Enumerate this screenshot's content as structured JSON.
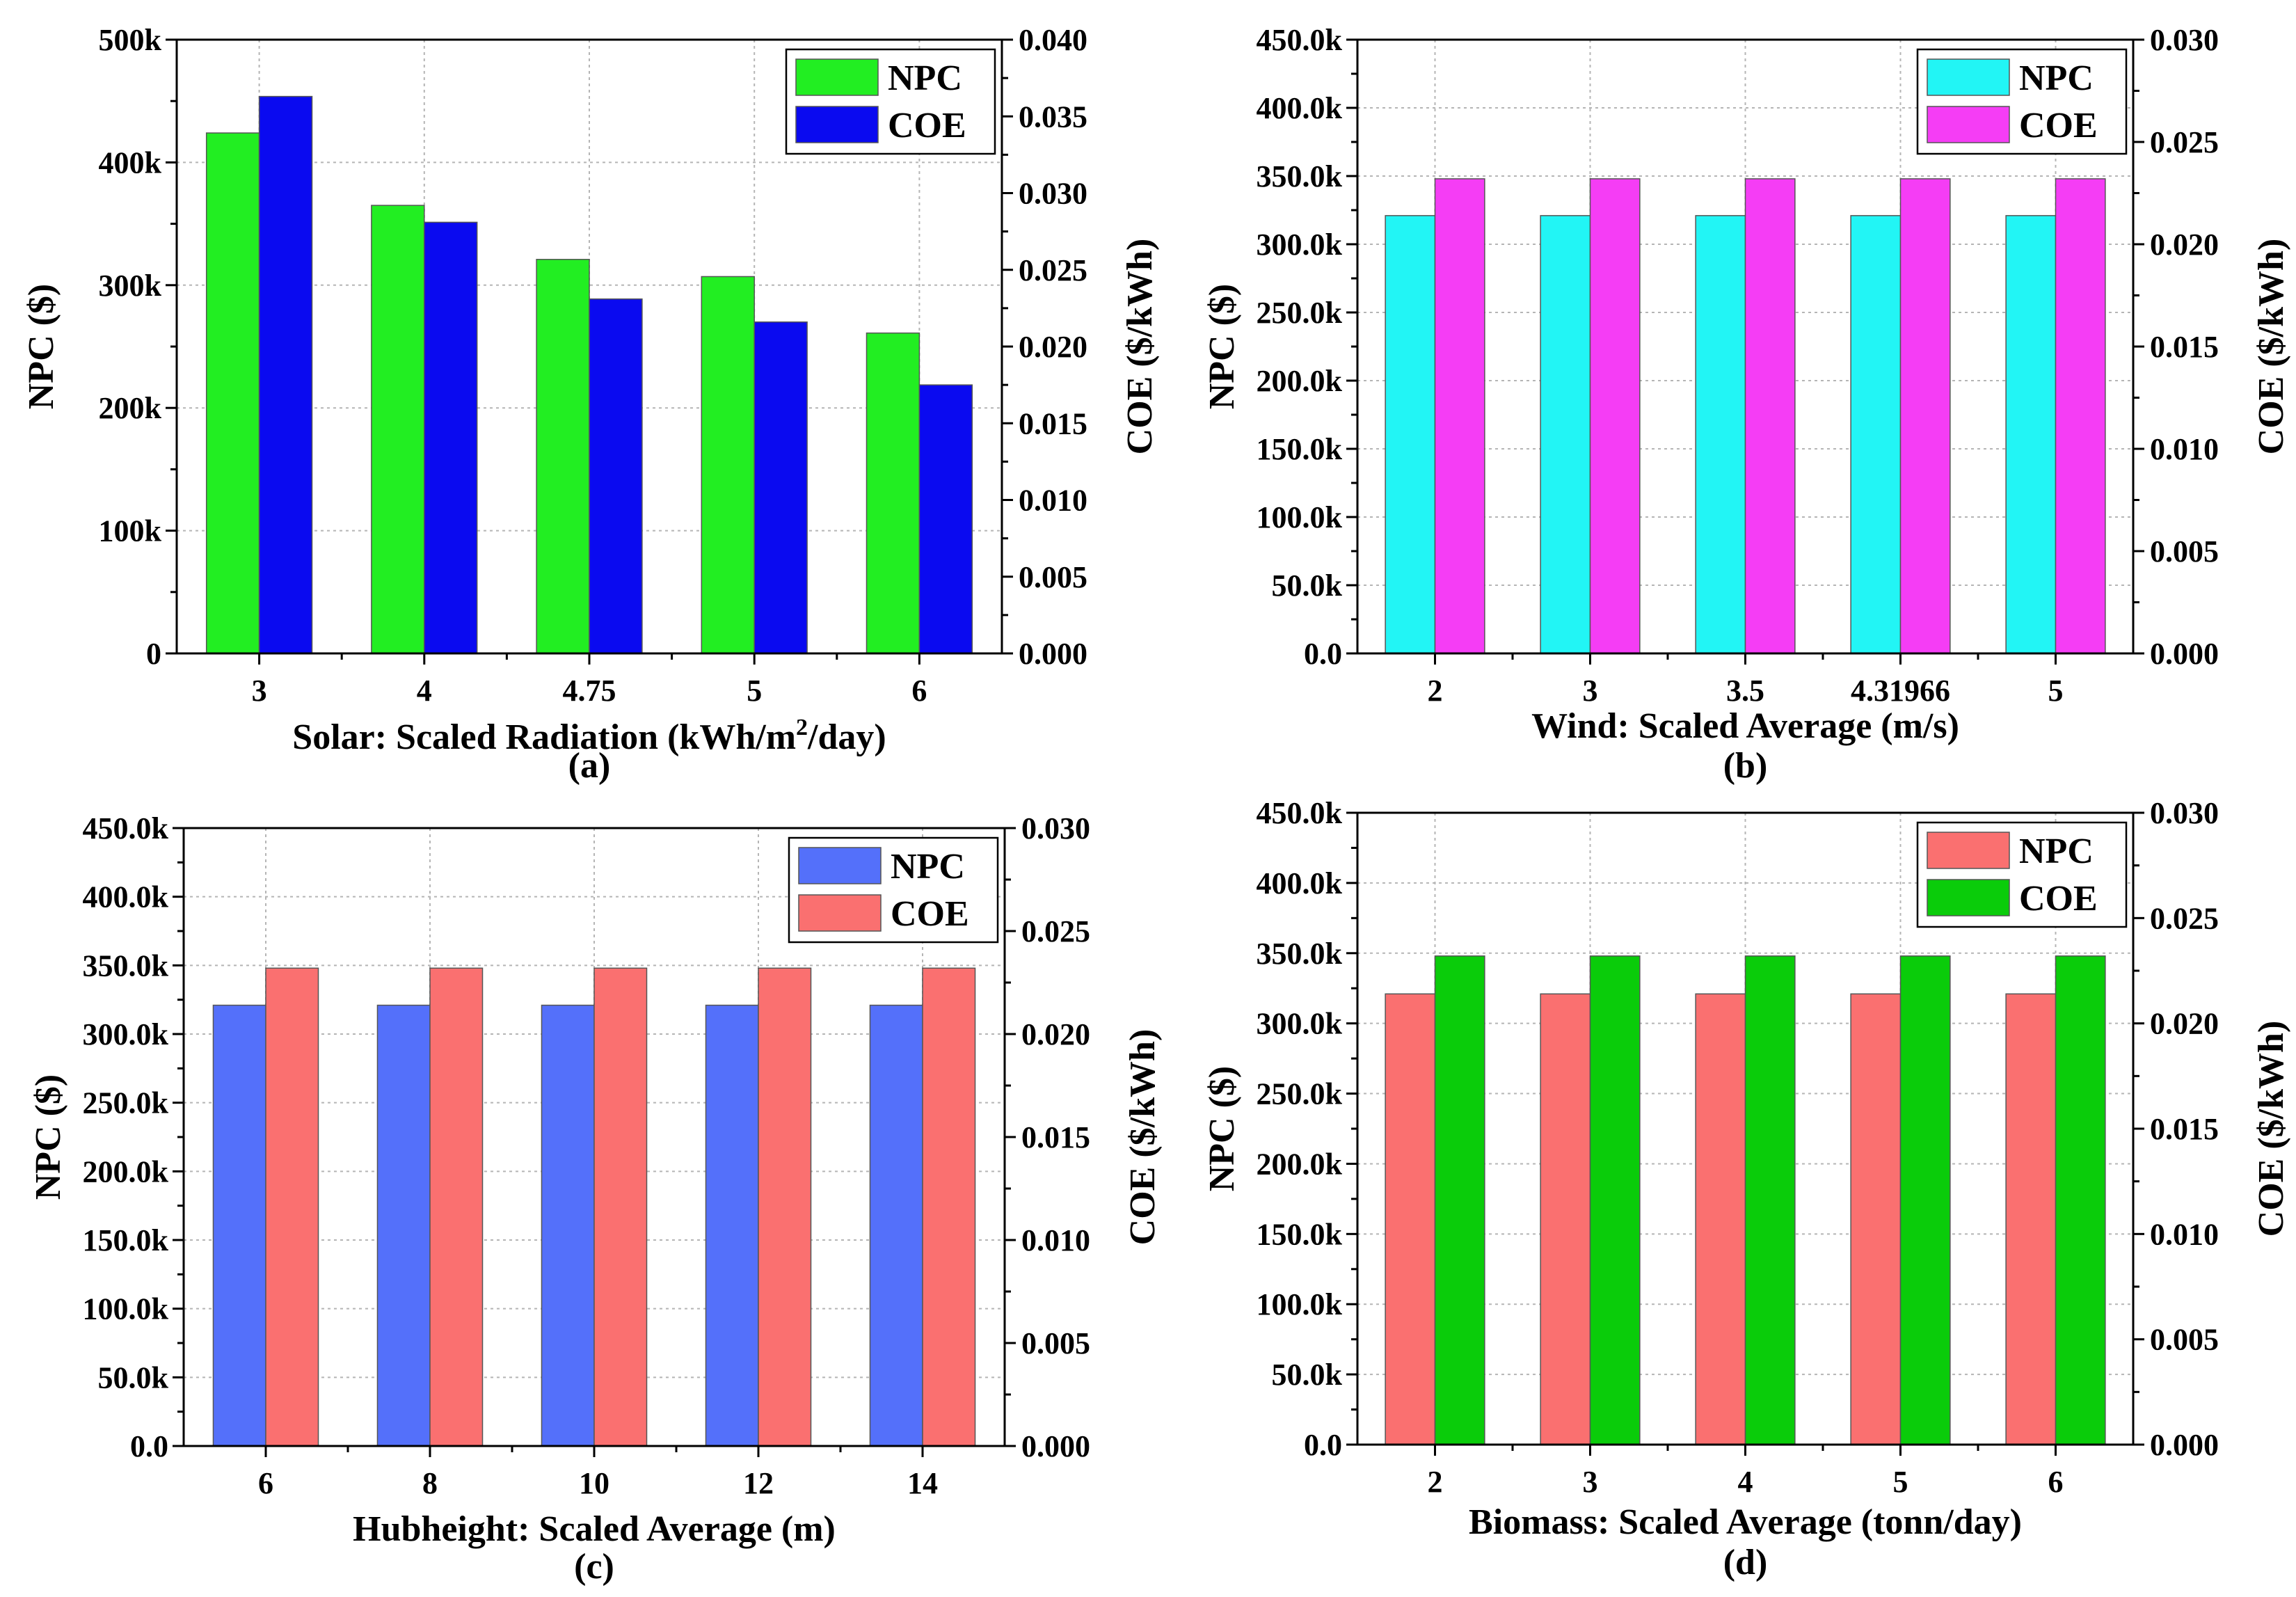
{
  "figure": {
    "panel_count": 4
  },
  "chart_data": [
    {
      "id": "a",
      "type": "bar",
      "caption": "(a)",
      "xlabel_main": "Solar: Scaled Radiation (kWh/m",
      "xlabel_sup": "2",
      "xlabel_end": "/day)",
      "categories": [
        "3",
        "4",
        "4.75",
        "5",
        "6"
      ],
      "ylabel_left": "NPC ($)",
      "ylabel_right": "COE ($/kWh)",
      "left_axis": {
        "min": 0,
        "max": 500000,
        "ticks": [
          0,
          100000,
          200000,
          300000,
          400000,
          500000
        ],
        "labels": [
          "0",
          "100k",
          "200k",
          "300k",
          "400k",
          "500k"
        ]
      },
      "right_axis": {
        "min": 0,
        "max": 0.04,
        "ticks": [
          0,
          0.005,
          0.01,
          0.015,
          0.02,
          0.025,
          0.03,
          0.035,
          0.04
        ],
        "labels": [
          "0.000",
          "0.005",
          "0.010",
          "0.015",
          "0.020",
          "0.025",
          "0.030",
          "0.035",
          "0.040"
        ]
      },
      "grid": true,
      "legend_position": "top-right",
      "series": [
        {
          "name": "NPC",
          "axis": "left",
          "color": "#22EE22",
          "values": [
            424000,
            365000,
            321000,
            307000,
            261000
          ]
        },
        {
          "name": "COE",
          "axis": "right",
          "color": "#0A0AF0",
          "values": [
            0.0363,
            0.0281,
            0.0231,
            0.0216,
            0.0175
          ]
        }
      ]
    },
    {
      "id": "b",
      "type": "bar",
      "caption": "(b)",
      "xlabel_main": "Wind: Scaled Average (m/s)",
      "xlabel_sup": "",
      "xlabel_end": "",
      "categories": [
        "2",
        "3",
        "3.5",
        "4.31966",
        "5"
      ],
      "ylabel_left": "NPC ($)",
      "ylabel_right": "COE ($/kWh)",
      "left_axis": {
        "min": 0,
        "max": 450000,
        "ticks": [
          0,
          50000,
          100000,
          150000,
          200000,
          250000,
          300000,
          350000,
          400000,
          450000
        ],
        "labels": [
          "0.0",
          "50.0k",
          "100.0k",
          "150.0k",
          "200.0k",
          "250.0k",
          "300.0k",
          "350.0k",
          "400.0k",
          "450.0k"
        ]
      },
      "right_axis": {
        "min": 0,
        "max": 0.03,
        "ticks": [
          0,
          0.005,
          0.01,
          0.015,
          0.02,
          0.025,
          0.03
        ],
        "labels": [
          "0.000",
          "0.005",
          "0.010",
          "0.015",
          "0.020",
          "0.025",
          "0.030"
        ]
      },
      "grid": true,
      "legend_position": "top-right",
      "series": [
        {
          "name": "NPC",
          "axis": "left",
          "color": "#22F5F5",
          "values": [
            321000,
            321000,
            321000,
            321000,
            321000
          ]
        },
        {
          "name": "COE",
          "axis": "right",
          "color": "#F53DF5",
          "values": [
            0.0232,
            0.0232,
            0.0232,
            0.0232,
            0.0232
          ]
        }
      ]
    },
    {
      "id": "c",
      "type": "bar",
      "caption": "(c)",
      "xlabel_main": "Hubheight: Scaled Average (m)",
      "xlabel_sup": "",
      "xlabel_end": "",
      "categories": [
        "6",
        "8",
        "10",
        "12",
        "14"
      ],
      "ylabel_left": "NPC ($)",
      "ylabel_right": "COE ($/kWh)",
      "left_axis": {
        "min": 0,
        "max": 450000,
        "ticks": [
          0,
          50000,
          100000,
          150000,
          200000,
          250000,
          300000,
          350000,
          400000,
          450000
        ],
        "labels": [
          "0.0",
          "50.0k",
          "100.0k",
          "150.0k",
          "200.0k",
          "250.0k",
          "300.0k",
          "350.0k",
          "400.0k",
          "450.0k"
        ]
      },
      "right_axis": {
        "min": 0,
        "max": 0.03,
        "ticks": [
          0,
          0.005,
          0.01,
          0.015,
          0.02,
          0.025,
          0.03
        ],
        "labels": [
          "0.000",
          "0.005",
          "0.010",
          "0.015",
          "0.020",
          "0.025",
          "0.030"
        ]
      },
      "grid": true,
      "legend_position": "top-right",
      "series": [
        {
          "name": "NPC",
          "axis": "left",
          "color": "#5470FA",
          "values": [
            321000,
            321000,
            321000,
            321000,
            321000
          ]
        },
        {
          "name": "COE",
          "axis": "right",
          "color": "#FA7070",
          "values": [
            0.0232,
            0.0232,
            0.0232,
            0.0232,
            0.0232
          ]
        }
      ]
    },
    {
      "id": "d",
      "type": "bar",
      "caption": "(d)",
      "xlabel_main": "Biomass: Scaled Average (tonn/day)",
      "xlabel_sup": "",
      "xlabel_end": "",
      "categories": [
        "2",
        "3",
        "4",
        "5",
        "6"
      ],
      "ylabel_left": "NPC ($)",
      "ylabel_right": "COE ($/kWh)",
      "left_axis": {
        "min": 0,
        "max": 450000,
        "ticks": [
          0,
          50000,
          100000,
          150000,
          200000,
          250000,
          300000,
          350000,
          400000,
          450000
        ],
        "labels": [
          "0.0",
          "50.0k",
          "100.0k",
          "150.0k",
          "200.0k",
          "250.0k",
          "300.0k",
          "350.0k",
          "400.0k",
          "450.0k"
        ]
      },
      "right_axis": {
        "min": 0,
        "max": 0.03,
        "ticks": [
          0,
          0.005,
          0.01,
          0.015,
          0.02,
          0.025,
          0.03
        ],
        "labels": [
          "0.000",
          "0.005",
          "0.010",
          "0.015",
          "0.020",
          "0.025",
          "0.030"
        ]
      },
      "grid": true,
      "legend_position": "top-right",
      "series": [
        {
          "name": "NPC",
          "axis": "left",
          "color": "#FA7070",
          "values": [
            321000,
            321000,
            321000,
            321000,
            321000
          ]
        },
        {
          "name": "COE",
          "axis": "right",
          "color": "#0ACC0A",
          "values": [
            0.0232,
            0.0232,
            0.0232,
            0.0232,
            0.0232
          ]
        }
      ]
    }
  ]
}
